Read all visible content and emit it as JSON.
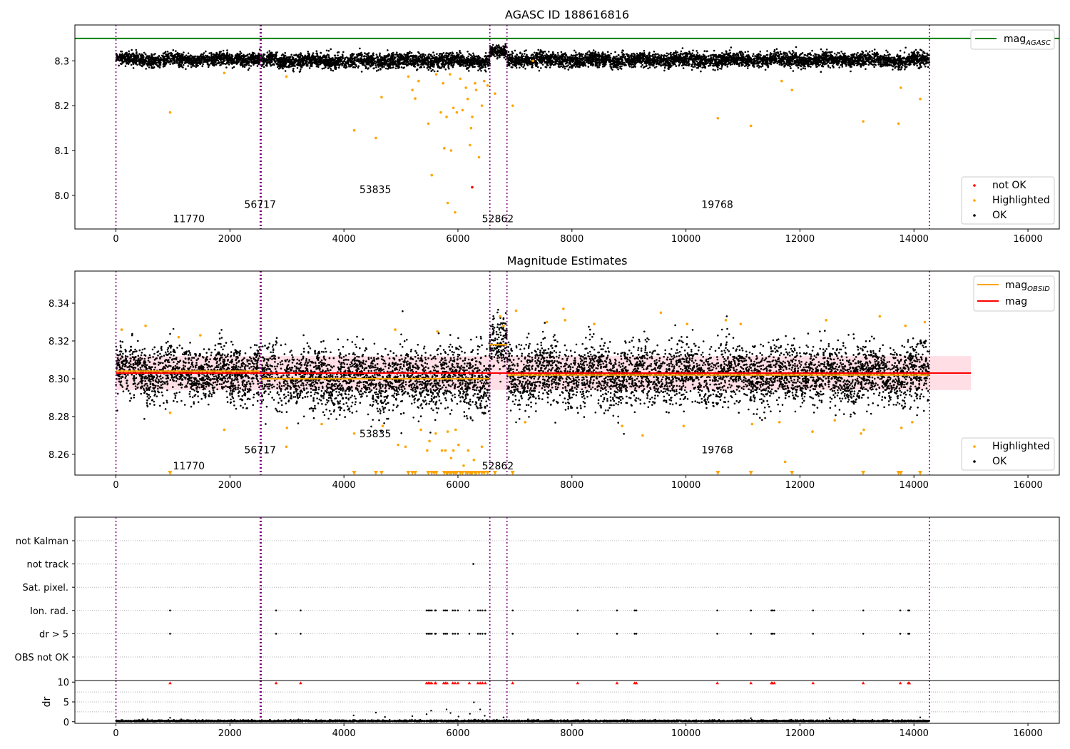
{
  "figure": {
    "background": "#ffffff"
  },
  "colors": {
    "ok": "#000000",
    "highlighted": "#ffa500",
    "not_ok": "#ff0000",
    "agasc": "#008000",
    "mag": "#ff0000",
    "mag_obsid": "#ffa500",
    "obs_boundary": "#800080",
    "band": "#ffc0cb"
  },
  "chart_data": [
    {
      "id": "top",
      "type": "scatter",
      "title": "AGASC ID 188616816",
      "xlim": [
        -720,
        16550
      ],
      "ylim": [
        7.925,
        8.38
      ],
      "x_ticks": [
        0,
        2000,
        4000,
        6000,
        8000,
        10000,
        12000,
        14000,
        16000
      ],
      "x_tick_labels": [
        "0",
        "2000",
        "4000",
        "6000",
        "8000",
        "10000",
        "12000",
        "14000",
        "16000"
      ],
      "y_ticks": [
        8.0,
        8.1,
        8.2,
        8.3
      ],
      "y_tick_labels": [
        "8.0",
        "8.1",
        "8.2",
        "8.3"
      ],
      "grid": false,
      "obs_boundaries": [
        0,
        2530,
        2548,
        6560,
        6860,
        14270
      ],
      "obs_labels": [
        {
          "text": "11770",
          "x": 1280,
          "y": 7.94
        },
        {
          "text": "56717",
          "x": 2530,
          "y": 7.972
        },
        {
          "text": "53835",
          "x": 4550,
          "y": 8.005
        },
        {
          "text": "52862",
          "x": 6700,
          "y": 7.94
        },
        {
          "text": "19768",
          "x": 10550,
          "y": 7.972
        }
      ],
      "segments": [
        {
          "x0": 0,
          "x1": 2530,
          "mean": 8.303,
          "spread": 0.007
        },
        {
          "x0": 2548,
          "x1": 6560,
          "mean": 8.3,
          "spread": 0.008
        },
        {
          "x0": 6560,
          "x1": 6860,
          "mean": 8.318,
          "spread": 0.007
        },
        {
          "x0": 6860,
          "x1": 14270,
          "mean": 8.302,
          "spread": 0.008
        }
      ],
      "reference_lines": [
        {
          "name": "mag_AGASC",
          "y": 8.35,
          "x_range": [
            -720,
            16550
          ],
          "color": "#008000"
        }
      ],
      "highlighted_points": [
        [
          950,
          8.185
        ],
        [
          1900,
          8.273
        ],
        [
          2990,
          8.265
        ],
        [
          4180,
          8.145
        ],
        [
          4560,
          8.128
        ],
        [
          4660,
          8.219
        ],
        [
          5130,
          8.265
        ],
        [
          5200,
          8.235
        ],
        [
          5250,
          8.216
        ],
        [
          5310,
          8.255
        ],
        [
          5480,
          8.16
        ],
        [
          5540,
          8.045
        ],
        [
          5620,
          8.27
        ],
        [
          5700,
          8.185
        ],
        [
          5740,
          8.25
        ],
        [
          5760,
          8.105
        ],
        [
          5800,
          8.175
        ],
        [
          5820,
          7.983
        ],
        [
          5860,
          8.27
        ],
        [
          5880,
          8.1
        ],
        [
          5920,
          8.195
        ],
        [
          5950,
          7.962
        ],
        [
          5980,
          8.185
        ],
        [
          6040,
          8.26
        ],
        [
          6080,
          8.19
        ],
        [
          6140,
          8.24
        ],
        [
          6170,
          8.215
        ],
        [
          6210,
          8.112
        ],
        [
          6230,
          8.15
        ],
        [
          6250,
          8.175
        ],
        [
          6300,
          8.25
        ],
        [
          6320,
          8.235
        ],
        [
          6370,
          8.085
        ],
        [
          6420,
          8.2
        ],
        [
          6460,
          8.255
        ],
        [
          6520,
          8.245
        ],
        [
          6650,
          8.227
        ],
        [
          6960,
          8.2
        ],
        [
          7320,
          8.3
        ],
        [
          10560,
          8.172
        ],
        [
          11140,
          8.155
        ],
        [
          11680,
          8.255
        ],
        [
          11860,
          8.235
        ],
        [
          13110,
          8.165
        ],
        [
          13730,
          8.16
        ],
        [
          13770,
          8.24
        ],
        [
          14110,
          8.215
        ]
      ],
      "not_ok_points": [
        [
          6250,
          8.018
        ]
      ],
      "legends": [
        {
          "position": "top-right",
          "entries": [
            {
              "label": "mag",
              "label_sub": "AGASC",
              "marker": "line",
              "color": "#008000"
            }
          ]
        },
        {
          "position": "lower-right",
          "entries": [
            {
              "label": "not OK",
              "marker": "dot",
              "color": "#ff0000"
            },
            {
              "label": "Highlighted",
              "marker": "dot",
              "color": "#ffa500"
            },
            {
              "label": "OK",
              "marker": "dot",
              "color": "#000000"
            }
          ]
        }
      ]
    },
    {
      "id": "middle",
      "type": "scatter",
      "title": "Magnitude Estimates",
      "xlim": [
        -720,
        16550
      ],
      "ylim": [
        8.249,
        8.357
      ],
      "x_ticks": [
        0,
        2000,
        4000,
        6000,
        8000,
        10000,
        12000,
        14000,
        16000
      ],
      "x_tick_labels": [
        "0",
        "2000",
        "4000",
        "6000",
        "8000",
        "10000",
        "12000",
        "14000",
        "16000"
      ],
      "y_ticks": [
        8.26,
        8.28,
        8.3,
        8.32,
        8.34
      ],
      "y_tick_labels": [
        "8.26",
        "8.28",
        "8.30",
        "8.32",
        "8.34"
      ],
      "grid": false,
      "obs_boundaries": [
        0,
        2530,
        2548,
        6560,
        6860,
        14270
      ],
      "obs_labels": [
        {
          "text": "11770",
          "x": 1280,
          "y": 8.252
        },
        {
          "text": "56717",
          "x": 2530,
          "y": 8.2605
        },
        {
          "text": "53835",
          "x": 4550,
          "y": 8.269
        },
        {
          "text": "52862",
          "x": 6700,
          "y": 8.252
        },
        {
          "text": "19768",
          "x": 10550,
          "y": 8.2605
        }
      ],
      "segments": [
        {
          "x0": 0,
          "x1": 2530,
          "mean": 8.303,
          "spread": 0.007
        },
        {
          "x0": 2548,
          "x1": 6560,
          "mean": 8.3,
          "spread": 0.008
        },
        {
          "x0": 6560,
          "x1": 6860,
          "mean": 8.318,
          "spread": 0.007
        },
        {
          "x0": 6860,
          "x1": 14270,
          "mean": 8.302,
          "spread": 0.008
        }
      ],
      "mag_line": {
        "y": 8.303,
        "x_range": [
          0,
          15000
        ],
        "band": [
          8.294,
          8.312
        ]
      },
      "obsid_means": [
        {
          "x0": 0,
          "x1": 2530,
          "y": 8.304
        },
        {
          "x0": 2548,
          "x1": 6560,
          "y": 8.3
        },
        {
          "x0": 6560,
          "x1": 6860,
          "y": 8.318
        },
        {
          "x0": 6860,
          "x1": 14270,
          "y": 8.302
        }
      ],
      "highlighted_points": [
        [
          100,
          8.326
        ],
        [
          520,
          8.328
        ],
        [
          950,
          8.282
        ],
        [
          1100,
          8.322
        ],
        [
          1480,
          8.323
        ],
        [
          1900,
          8.273
        ],
        [
          2990,
          8.264
        ],
        [
          3000,
          8.274
        ],
        [
          3610,
          8.276
        ],
        [
          4180,
          8.271
        ],
        [
          4680,
          8.275
        ],
        [
          4900,
          8.326
        ],
        [
          4950,
          8.265
        ],
        [
          5080,
          8.264
        ],
        [
          5350,
          8.273
        ],
        [
          5460,
          8.262
        ],
        [
          5500,
          8.267
        ],
        [
          5610,
          8.271
        ],
        [
          5640,
          8.325
        ],
        [
          5720,
          8.262
        ],
        [
          5780,
          8.262
        ],
        [
          5820,
          8.272
        ],
        [
          5880,
          8.258
        ],
        [
          5920,
          8.262
        ],
        [
          5960,
          8.273
        ],
        [
          6010,
          8.265
        ],
        [
          6100,
          8.254
        ],
        [
          6180,
          8.262
        ],
        [
          6280,
          8.257
        ],
        [
          6420,
          8.264
        ],
        [
          6740,
          8.333
        ],
        [
          6800,
          8.328
        ],
        [
          7020,
          8.336
        ],
        [
          7180,
          8.277
        ],
        [
          7560,
          8.33
        ],
        [
          7850,
          8.337
        ],
        [
          7880,
          8.331
        ],
        [
          8390,
          8.329
        ],
        [
          8880,
          8.275
        ],
        [
          9240,
          8.27
        ],
        [
          9560,
          8.335
        ],
        [
          9960,
          8.275
        ],
        [
          10020,
          8.329
        ],
        [
          10700,
          8.331
        ],
        [
          10960,
          8.329
        ],
        [
          11160,
          8.276
        ],
        [
          11640,
          8.277
        ],
        [
          11740,
          8.256
        ],
        [
          12220,
          8.272
        ],
        [
          12460,
          8.331
        ],
        [
          12610,
          8.278
        ],
        [
          13070,
          8.271
        ],
        [
          13120,
          8.273
        ],
        [
          13400,
          8.333
        ],
        [
          13780,
          8.274
        ],
        [
          13850,
          8.328
        ],
        [
          13970,
          8.277
        ],
        [
          14190,
          8.33
        ]
      ],
      "below_axis_markers": [
        950,
        4180,
        4560,
        4660,
        5130,
        5200,
        5250,
        5480,
        5540,
        5580,
        5620,
        5760,
        5800,
        5820,
        5860,
        5880,
        5920,
        5950,
        5980,
        6040,
        6080,
        6140,
        6170,
        6210,
        6230,
        6250,
        6300,
        6320,
        6370,
        6420,
        6460,
        6520,
        6650,
        6960,
        10560,
        11140,
        11860,
        13110,
        13730,
        13770,
        14110
      ],
      "legends": [
        {
          "position": "top-right",
          "entries": [
            {
              "label": "mag",
              "label_sub": "OBSID",
              "marker": "line",
              "color": "#ffa500"
            },
            {
              "label": "mag",
              "marker": "line",
              "color": "#ff0000"
            }
          ]
        },
        {
          "position": "lower-right",
          "entries": [
            {
              "label": "Highlighted",
              "marker": "dot",
              "color": "#ffa500"
            },
            {
              "label": "OK",
              "marker": "dot",
              "color": "#000000"
            }
          ]
        }
      ]
    },
    {
      "id": "flags",
      "type": "scatter",
      "xlim": [
        -720,
        16550
      ],
      "categories": [
        "not Kalman",
        "not track",
        "Sat. pixel.",
        "Ion. rad.",
        "dr > 5",
        "OBS not OK"
      ],
      "grid": true,
      "obs_boundaries": [
        0,
        2530,
        2548,
        6560,
        6860,
        14270
      ],
      "flag_points": {
        "not Kalman": [],
        "not track": [
          6270
        ],
        "Sat. pixel.": [],
        "Ion. rad.": [
          950,
          2810,
          3240,
          5450,
          5480,
          5510,
          5540,
          5600,
          5610,
          5750,
          5780,
          5810,
          5910,
          5950,
          6000,
          6200,
          6350,
          6390,
          6430,
          6480,
          6960,
          8100,
          8790,
          9100,
          9130,
          10550,
          11140,
          11500,
          11520,
          11550,
          12230,
          13110,
          13760,
          13900,
          13920
        ],
        "dr > 5": [
          950,
          2810,
          3240,
          5450,
          5480,
          5510,
          5540,
          5600,
          5610,
          5750,
          5780,
          5810,
          5910,
          5950,
          6000,
          6200,
          6350,
          6390,
          6430,
          6480,
          6960,
          8100,
          8790,
          9100,
          9130,
          10550,
          11140,
          11500,
          11520,
          11550,
          12230,
          13110,
          13760,
          13900,
          13920
        ],
        "OBS not OK": []
      }
    },
    {
      "id": "dr",
      "type": "scatter",
      "ylabel": "dr",
      "xlim": [
        -720,
        16550
      ],
      "ylim": [
        -0.4,
        10.4
      ],
      "x_ticks": [
        0,
        2000,
        4000,
        6000,
        8000,
        10000,
        12000,
        14000,
        16000
      ],
      "x_tick_labels": [
        "0",
        "2000",
        "4000",
        "6000",
        "8000",
        "10000",
        "12000",
        "14000",
        "16000"
      ],
      "y_ticks": [
        0,
        5,
        10
      ],
      "y_tick_labels": [
        "0",
        "5",
        "10"
      ],
      "grid": true,
      "obs_boundaries": [
        0,
        2530,
        2548,
        6560,
        6860,
        14270
      ],
      "baseline_range": [
        0,
        14270
      ],
      "scatter_points": [
        [
          950,
          1.0
        ],
        [
          4170,
          1.6
        ],
        [
          4560,
          2.3
        ],
        [
          4720,
          1.2
        ],
        [
          5200,
          1.4
        ],
        [
          5450,
          1.9
        ],
        [
          5530,
          2.8
        ],
        [
          5800,
          3.1
        ],
        [
          5870,
          2.2
        ],
        [
          6010,
          1.3
        ],
        [
          6210,
          2.0
        ],
        [
          6280,
          4.9
        ],
        [
          6390,
          3.1
        ],
        [
          6470,
          1.5
        ],
        [
          6800,
          1.1
        ],
        [
          11140,
          0.9
        ],
        [
          12520,
          0.9
        ],
        [
          14110,
          1.1
        ]
      ],
      "clipped_markers": [
        950,
        2810,
        3240,
        5450,
        5480,
        5510,
        5540,
        5600,
        5610,
        5750,
        5780,
        5810,
        5910,
        5950,
        6000,
        6200,
        6350,
        6390,
        6430,
        6480,
        6960,
        8100,
        8790,
        9100,
        9130,
        10550,
        11140,
        11500,
        11520,
        11550,
        12230,
        13110,
        13760,
        13900,
        13920
      ]
    }
  ]
}
